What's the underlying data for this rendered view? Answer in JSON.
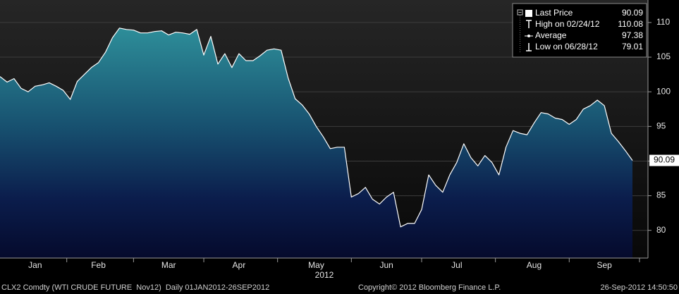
{
  "chart_data": {
    "type": "area",
    "categories": [
      null,
      null,
      null,
      null,
      null,
      "Jan",
      null,
      null,
      null,
      null,
      null,
      null,
      null,
      null,
      "Feb",
      null,
      null,
      null,
      null,
      null,
      null,
      null,
      null,
      null,
      "Mar",
      null,
      null,
      null,
      null,
      null,
      null,
      null,
      null,
      null,
      "Apr",
      null,
      null,
      null,
      null,
      null,
      null,
      null,
      null,
      null,
      null,
      "May",
      null,
      null,
      null,
      null,
      null,
      null,
      null,
      null,
      null,
      "Jun",
      null,
      null,
      null,
      null,
      null,
      null,
      null,
      null,
      null,
      "Jul",
      null,
      null,
      null,
      null,
      null,
      null,
      null,
      null,
      null,
      null,
      "Aug",
      null,
      null,
      null,
      null,
      null,
      null,
      null,
      null,
      null,
      "Sep",
      null,
      null,
      null,
      null
    ],
    "series": [
      {
        "name": "Last Price",
        "color": "#ffffff",
        "values": [
          102.2,
          101.4,
          101.9,
          100.5,
          100,
          100.8,
          101,
          101.3,
          100.8,
          100.2,
          98.9,
          101.5,
          102.5,
          103.5,
          104.2,
          105.7,
          107.8,
          109.2,
          109,
          108.9,
          108.5,
          108.5,
          108.7,
          108.8,
          108.2,
          108.6,
          108.5,
          108.3,
          109,
          105.3,
          108,
          104,
          105.5,
          103.5,
          105.5,
          104.5,
          104.5,
          105.2,
          106,
          106.2,
          106,
          102,
          99,
          98.1,
          96.8,
          95,
          93.5,
          91.8,
          92,
          92,
          84.8,
          85.3,
          86.2,
          84.5,
          83.8,
          84.8,
          85.5,
          80.5,
          81,
          81,
          83,
          88,
          86.5,
          85.5,
          88,
          89.8,
          92.5,
          90.5,
          89.3,
          90.8,
          89.8,
          88,
          92,
          94.4,
          94,
          93.8,
          95.5,
          97,
          96.8,
          96.2,
          96,
          95.3,
          96,
          97.5,
          98,
          98.8,
          98,
          94,
          92.8,
          91.5,
          90.09
        ]
      }
    ],
    "ylim": [
      76,
      113.25
    ],
    "yticks": [
      80,
      85,
      90,
      95,
      100,
      105,
      110
    ],
    "grid": true,
    "year_label": "2012",
    "legend": [
      {
        "label": "Last Price",
        "value": 90.09
      },
      {
        "label": "High on 02/24/12",
        "value": 110.08
      },
      {
        "label": "Average",
        "value": 97.38
      },
      {
        "label": "Low on 06/28/12",
        "value": 79.01
      }
    ],
    "footer": {
      "left": "CLX2 Comdty (WTI CRUDE FUTURE  Nov12)  Daily 01JAN2012-26SEP2012",
      "center": "Copyright© 2012 Bloomberg Finance L.P.",
      "right": "26-Sep-2012 14:50:50"
    }
  }
}
